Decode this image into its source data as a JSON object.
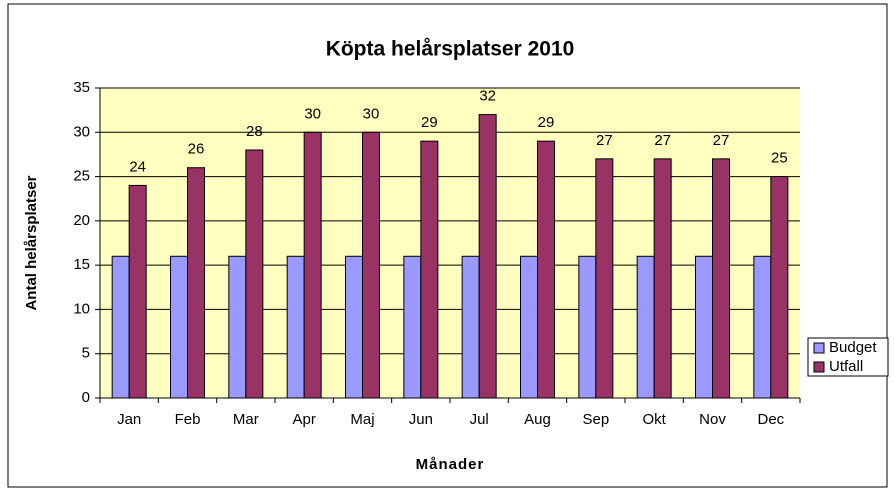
{
  "chart_data": {
    "type": "bar",
    "title": "Köpta helårsplatser 2010",
    "x_label": "Månader",
    "y_label": "Antal helårsplatser",
    "categories": [
      "Jan",
      "Feb",
      "Mar",
      "Apr",
      "Maj",
      "Jun",
      "Jul",
      "Aug",
      "Sep",
      "Okt",
      "Nov",
      "Dec"
    ],
    "series": [
      {
        "name": "Budget",
        "color": "#9999ff",
        "values": [
          16,
          16,
          16,
          16,
          16,
          16,
          16,
          16,
          16,
          16,
          16,
          16
        ]
      },
      {
        "name": "Utfall",
        "color": "#993366",
        "values": [
          24,
          26,
          28,
          30,
          30,
          29,
          32,
          29,
          27,
          27,
          27,
          25
        ],
        "data_labels": true
      }
    ],
    "ylim": [
      0,
      35
    ],
    "yticks": [
      0,
      5,
      10,
      15,
      20,
      25,
      30,
      35
    ],
    "grid": true,
    "legend": "right",
    "plot_background": "#ffffc0"
  }
}
